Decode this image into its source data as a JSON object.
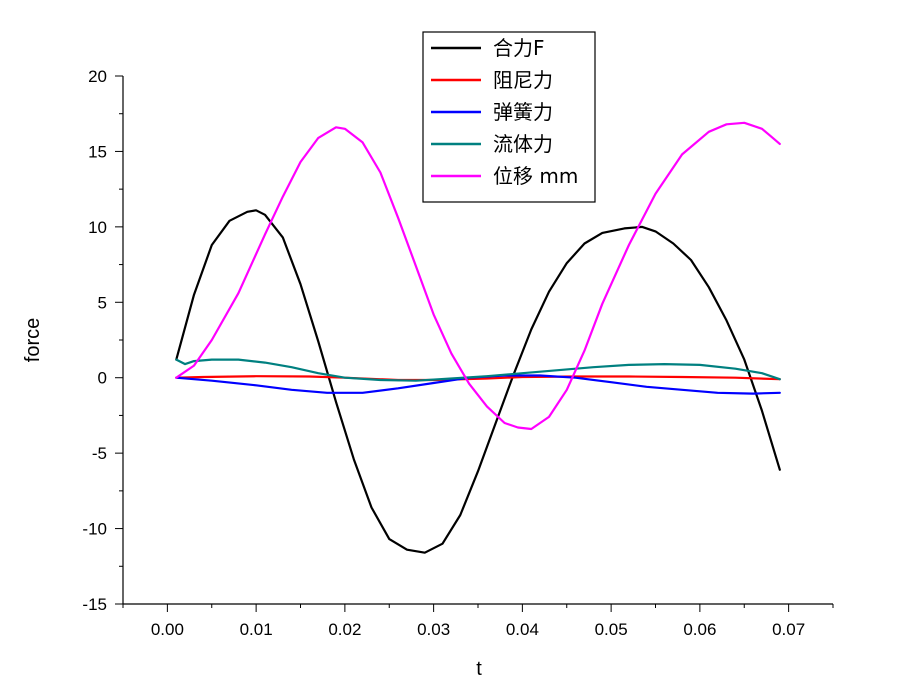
{
  "chart_data": {
    "type": "line",
    "xlabel": "t",
    "ylabel": "force",
    "xlim": [
      -0.005,
      0.075
    ],
    "ylim": [
      -15,
      20
    ],
    "x_ticks": [
      "0.00",
      "0.01",
      "0.02",
      "0.03",
      "0.04",
      "0.05",
      "0.06",
      "0.07"
    ],
    "x_tick_values": [
      0,
      0.01,
      0.02,
      0.03,
      0.04,
      0.05,
      0.06,
      0.07
    ],
    "y_ticks": [
      "20",
      "15",
      "10",
      "5",
      "0",
      "-5",
      "-10",
      "-15"
    ],
    "y_tick_values": [
      20,
      15,
      10,
      5,
      0,
      -5,
      -10,
      -15
    ],
    "legend_position": "top-center",
    "grid": false,
    "series": [
      {
        "name": "合力F",
        "color": "#000000",
        "points": [
          [
            0.001,
            1.2
          ],
          [
            0.003,
            5.5
          ],
          [
            0.005,
            8.8
          ],
          [
            0.007,
            10.4
          ],
          [
            0.009,
            11.0
          ],
          [
            0.01,
            11.1
          ],
          [
            0.011,
            10.8
          ],
          [
            0.013,
            9.3
          ],
          [
            0.015,
            6.2
          ],
          [
            0.017,
            2.4
          ],
          [
            0.019,
            -1.6
          ],
          [
            0.021,
            -5.4
          ],
          [
            0.023,
            -8.6
          ],
          [
            0.025,
            -10.7
          ],
          [
            0.027,
            -11.4
          ],
          [
            0.029,
            -11.6
          ],
          [
            0.031,
            -11.0
          ],
          [
            0.033,
            -9.1
          ],
          [
            0.035,
            -6.2
          ],
          [
            0.037,
            -3.0
          ],
          [
            0.039,
            0.2
          ],
          [
            0.041,
            3.2
          ],
          [
            0.043,
            5.7
          ],
          [
            0.045,
            7.6
          ],
          [
            0.047,
            8.9
          ],
          [
            0.049,
            9.6
          ],
          [
            0.0515,
            9.9
          ],
          [
            0.0535,
            10.0
          ],
          [
            0.055,
            9.7
          ],
          [
            0.057,
            8.9
          ],
          [
            0.059,
            7.8
          ],
          [
            0.061,
            6.0
          ],
          [
            0.063,
            3.8
          ],
          [
            0.065,
            1.2
          ],
          [
            0.067,
            -2.2
          ],
          [
            0.069,
            -6.1
          ]
        ]
      },
      {
        "name": "阻尼力",
        "color": "#ff0000",
        "points": [
          [
            0.001,
            0.0
          ],
          [
            0.004,
            0.05
          ],
          [
            0.01,
            0.1
          ],
          [
            0.016,
            0.08
          ],
          [
            0.02,
            0.0
          ],
          [
            0.026,
            -0.15
          ],
          [
            0.03,
            -0.15
          ],
          [
            0.036,
            -0.05
          ],
          [
            0.04,
            0.05
          ],
          [
            0.046,
            0.08
          ],
          [
            0.052,
            0.08
          ],
          [
            0.058,
            0.05
          ],
          [
            0.064,
            0.0
          ],
          [
            0.069,
            -0.1
          ]
        ]
      },
      {
        "name": "弹簧力",
        "color": "#0000ff",
        "points": [
          [
            0.001,
            0.0
          ],
          [
            0.005,
            -0.2
          ],
          [
            0.01,
            -0.5
          ],
          [
            0.014,
            -0.8
          ],
          [
            0.018,
            -1.0
          ],
          [
            0.022,
            -1.0
          ],
          [
            0.026,
            -0.7
          ],
          [
            0.03,
            -0.35
          ],
          [
            0.034,
            0.0
          ],
          [
            0.038,
            0.15
          ],
          [
            0.042,
            0.15
          ],
          [
            0.046,
            0.0
          ],
          [
            0.05,
            -0.3
          ],
          [
            0.054,
            -0.6
          ],
          [
            0.058,
            -0.8
          ],
          [
            0.062,
            -1.0
          ],
          [
            0.066,
            -1.05
          ],
          [
            0.069,
            -1.0
          ]
        ]
      },
      {
        "name": "流体力",
        "color": "#008080",
        "points": [
          [
            0.001,
            1.2
          ],
          [
            0.002,
            0.9
          ],
          [
            0.003,
            1.1
          ],
          [
            0.005,
            1.2
          ],
          [
            0.008,
            1.2
          ],
          [
            0.011,
            1.0
          ],
          [
            0.014,
            0.7
          ],
          [
            0.017,
            0.3
          ],
          [
            0.02,
            0.0
          ],
          [
            0.024,
            -0.15
          ],
          [
            0.028,
            -0.2
          ],
          [
            0.032,
            -0.05
          ],
          [
            0.036,
            0.1
          ],
          [
            0.04,
            0.3
          ],
          [
            0.044,
            0.5
          ],
          [
            0.048,
            0.7
          ],
          [
            0.052,
            0.85
          ],
          [
            0.056,
            0.9
          ],
          [
            0.06,
            0.85
          ],
          [
            0.064,
            0.6
          ],
          [
            0.067,
            0.3
          ],
          [
            0.069,
            -0.1
          ]
        ]
      },
      {
        "name": "位移 mm",
        "color": "#ff00ff",
        "points": [
          [
            0.001,
            0.0
          ],
          [
            0.003,
            0.8
          ],
          [
            0.005,
            2.5
          ],
          [
            0.008,
            5.6
          ],
          [
            0.011,
            9.5
          ],
          [
            0.013,
            12.0
          ],
          [
            0.015,
            14.3
          ],
          [
            0.017,
            15.9
          ],
          [
            0.019,
            16.6
          ],
          [
            0.02,
            16.5
          ],
          [
            0.022,
            15.6
          ],
          [
            0.024,
            13.6
          ],
          [
            0.026,
            10.6
          ],
          [
            0.028,
            7.4
          ],
          [
            0.03,
            4.2
          ],
          [
            0.032,
            1.6
          ],
          [
            0.034,
            -0.4
          ],
          [
            0.036,
            -1.9
          ],
          [
            0.038,
            -3.0
          ],
          [
            0.0395,
            -3.3
          ],
          [
            0.041,
            -3.4
          ],
          [
            0.043,
            -2.6
          ],
          [
            0.045,
            -0.8
          ],
          [
            0.047,
            1.8
          ],
          [
            0.049,
            4.9
          ],
          [
            0.052,
            8.8
          ],
          [
            0.055,
            12.2
          ],
          [
            0.058,
            14.8
          ],
          [
            0.061,
            16.3
          ],
          [
            0.063,
            16.8
          ],
          [
            0.065,
            16.9
          ],
          [
            0.067,
            16.5
          ],
          [
            0.068,
            16.0
          ],
          [
            0.069,
            15.5
          ]
        ]
      }
    ]
  }
}
